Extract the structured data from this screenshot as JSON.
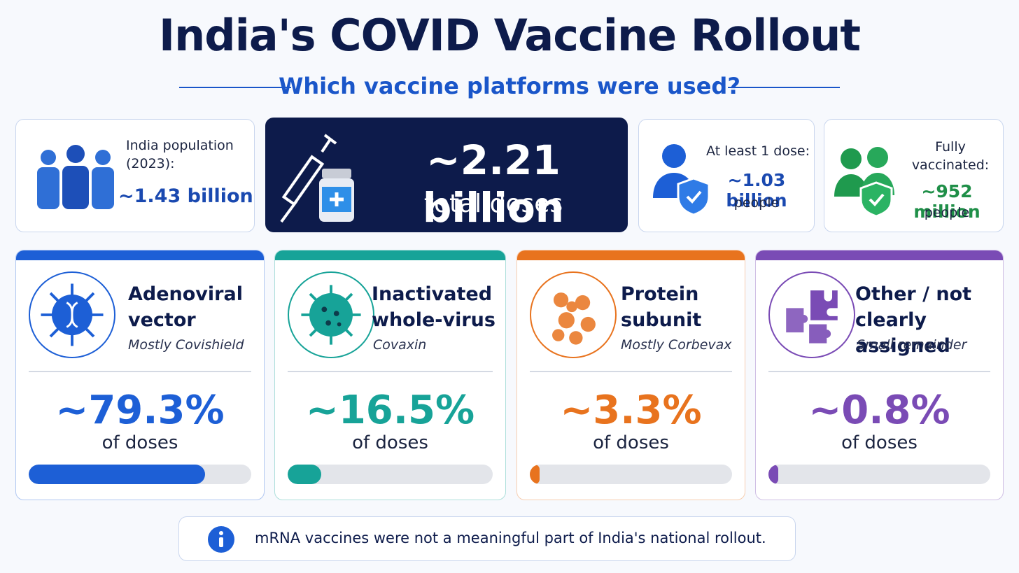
{
  "header": {
    "title": "India's COVID Vaccine Rollout",
    "subtitle": "Which vaccine platforms were used?"
  },
  "stats": [
    {
      "label": "India population (2023):",
      "value": "~1.43 billion"
    },
    {
      "value": "~2.21 billion",
      "label": "total doses"
    },
    {
      "label": "At least 1 dose:",
      "value": "~1.03 billion",
      "unit": "people"
    },
    {
      "label": "Fully vaccinated:",
      "value": "~952 million",
      "unit": "people"
    }
  ],
  "platforms": [
    {
      "name": "Adenoviral vector",
      "note": "Mostly Covishield",
      "share": 79.3,
      "share_label": "~79.3%",
      "caption": "of doses",
      "color": "#1d5fd6"
    },
    {
      "name": "Inactivated whole-virus",
      "note": "Covaxin",
      "share": 16.5,
      "share_label": "~16.5%",
      "caption": "of doses",
      "color": "#17a398"
    },
    {
      "name": "Protein subunit",
      "note": "Mostly Corbevax",
      "share": 3.3,
      "share_label": "~3.3%",
      "caption": "of doses",
      "color": "#e8731e"
    },
    {
      "name": "Other / not clearly assigned",
      "note": "Small remainder",
      "share": 0.8,
      "share_label": "~0.8%",
      "caption": "of doses",
      "color": "#7a4bb5"
    }
  ],
  "footnote": "mRNA vaccines were not a meaningful part of India's national rollout."
}
